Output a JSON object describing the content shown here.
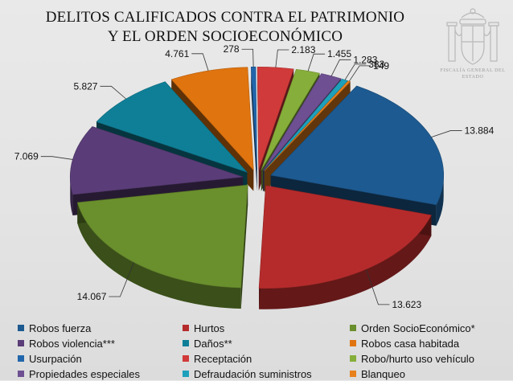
{
  "title": {
    "line1": "DELITOS CALIFICADOS CONTRA EL PATRIMONIO",
    "line2": "Y EL ORDEN SOCIOECONÓMICO"
  },
  "emblem": {
    "name": "coat-of-arms-logo",
    "text": "FISCALÍA GENERAL DEL ESTADO"
  },
  "chart_data": {
    "type": "pie",
    "style": "3d-exploded",
    "legend_position": "bottom",
    "slices": [
      {
        "label": "Robos fuerza",
        "value": 13884,
        "display": "13.884",
        "color": "#1d5a91"
      },
      {
        "label": "Hurtos",
        "value": 13623,
        "display": "13.623",
        "color": "#b52b2b"
      },
      {
        "label": "Orden SocioEconómico*",
        "value": 14067,
        "display": "14.067",
        "color": "#6a8f2d"
      },
      {
        "label": "Robos violencia***",
        "value": 7069,
        "display": "7.069",
        "color": "#5a3d78"
      },
      {
        "label": "Daños**",
        "value": 5827,
        "display": "5.827",
        "color": "#0f7f97"
      },
      {
        "label": "Robos casa habitada",
        "value": 4761,
        "display": "4.761",
        "color": "#e0740f"
      },
      {
        "label": "Usurpación",
        "value": 278,
        "display": "278",
        "color": "#2166ac"
      },
      {
        "label": "Receptación",
        "value": 2183,
        "display": "2.183",
        "color": "#d13a3a"
      },
      {
        "label": "Robo/hurto uso vehículo",
        "value": 1455,
        "display": "1.455",
        "color": "#86ae3a"
      },
      {
        "label": "Propiedades especiales",
        "value": 1283,
        "display": "1.283",
        "color": "#6e4f92"
      },
      {
        "label": "Defraudación suministros",
        "value": 383,
        "display": "383",
        "color": "#1ea0bb"
      },
      {
        "label": "Blanqueo",
        "value": 149,
        "display": "149",
        "color": "#e8801c"
      }
    ]
  }
}
